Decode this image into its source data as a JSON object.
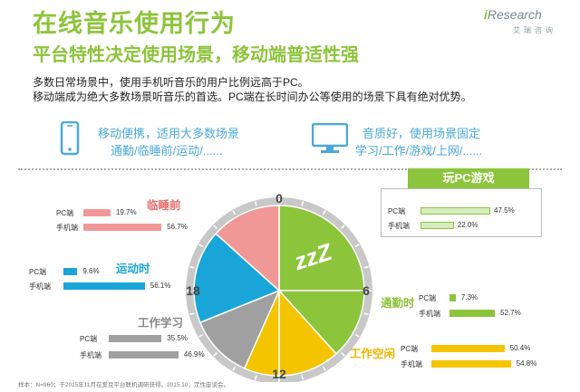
{
  "header": {
    "title": "在线音乐使用行为",
    "subtitle": "平台特性决定使用场景，移动端普适性强",
    "desc_line1": "多数日常场景中，使用手机听音乐的用户比例远高于PC。",
    "desc_line2": "移动端成为绝大多数场景听音乐的首选。PC端在长时间办公等使用的场景下具有绝对优势。",
    "logo_main": "Research",
    "logo_i": "i",
    "logo_sub": "艾瑞咨询"
  },
  "features": {
    "phone_line1": "移动便携，适用大多数场景",
    "phone_line2": "通勤/临睡前/运动/......",
    "pc_line1": "音质好，使用场景固定",
    "pc_line2": "学习/工作/游戏/上网/......",
    "phone_icon": "smartphone-icon",
    "pc_icon": "monitor-icon"
  },
  "clock": {
    "labels": [
      "0",
      "6",
      "12",
      "18"
    ],
    "zzz": "zzZ"
  },
  "footnote": "样本：N=960；于2015年11月在爱豆平台联机调研获得。2015.10，定性座谈会。",
  "colors": {
    "sleep": "#f09898",
    "exercise": "#1aa5d8",
    "work": "#a0a0a0",
    "office": "#f5c400",
    "commute": "#8cc43c",
    "game": "#8cc43c",
    "game_bar": "#d8ecc0"
  },
  "chart_data": {
    "type": "bar",
    "categories": [
      "PC端",
      "手机端"
    ],
    "scenes": [
      {
        "name": "临睡前",
        "series": [
          {
            "name": "PC端",
            "value": 19.7
          },
          {
            "name": "手机端",
            "value": 56.7
          }
        ],
        "value_labels": [
          "19.7%",
          "56.7%"
        ]
      },
      {
        "name": "运动时",
        "series": [
          {
            "name": "PC端",
            "value": 9.6
          },
          {
            "name": "手机端",
            "value": 56.1
          }
        ],
        "value_labels": [
          "9.6%",
          "56.1%"
        ]
      },
      {
        "name": "工作学习",
        "series": [
          {
            "name": "PC端",
            "value": 35.5
          },
          {
            "name": "手机端",
            "value": 46.9
          }
        ],
        "value_labels": [
          "35.5%",
          "46.9%"
        ]
      },
      {
        "name": "玩PC游戏",
        "series": [
          {
            "name": "PC端",
            "value": 47.5
          },
          {
            "name": "手机端",
            "value": 22.0
          }
        ],
        "value_labels": [
          "47.5%",
          "22.0%"
        ]
      },
      {
        "name": "通勤时",
        "series": [
          {
            "name": "PC端",
            "value": 7.3
          },
          {
            "name": "手机端",
            "value": 52.7
          }
        ],
        "value_labels": [
          "7.3%",
          "52.7%"
        ]
      },
      {
        "name": "工作空闲",
        "series": [
          {
            "name": "PC端",
            "value": 50.4
          },
          {
            "name": "手机端",
            "value": 54.8
          }
        ],
        "value_labels": [
          "50.4%",
          "54.8%"
        ]
      }
    ],
    "ylim": [
      0,
      100
    ]
  }
}
